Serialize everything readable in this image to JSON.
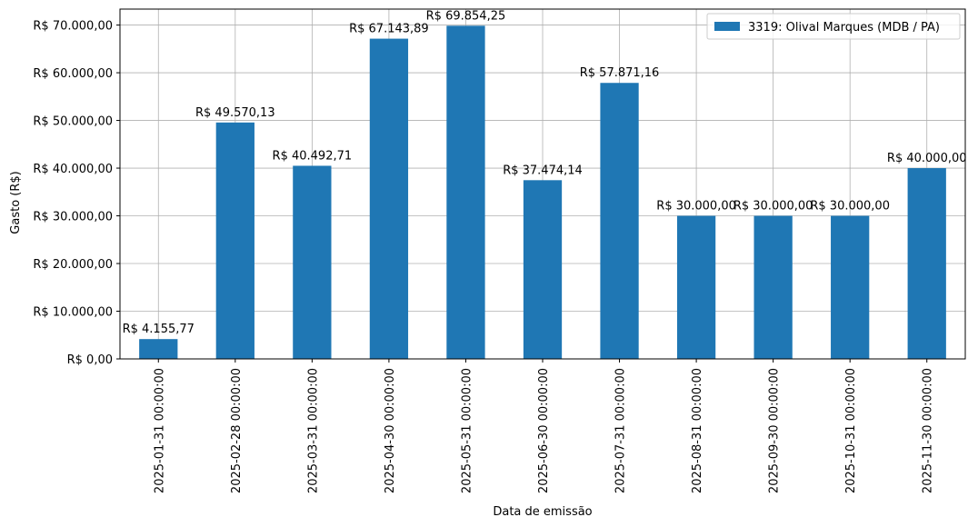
{
  "chart_data": {
    "type": "bar",
    "categories": [
      "2025-01-31 00:00:00",
      "2025-02-28 00:00:00",
      "2025-03-31 00:00:00",
      "2025-04-30 00:00:00",
      "2025-05-31 00:00:00",
      "2025-06-30 00:00:00",
      "2025-07-31 00:00:00",
      "2025-08-31 00:00:00",
      "2025-09-30 00:00:00",
      "2025-10-31 00:00:00",
      "2025-11-30 00:00:00"
    ],
    "series": [
      {
        "name": "3319: Olival Marques (MDB / PA)",
        "color": "#1f77b4",
        "values": [
          4155.77,
          49570.13,
          40492.71,
          67143.89,
          69854.25,
          37474.14,
          57871.16,
          30000.0,
          30000.0,
          30000.0,
          40000.0
        ]
      }
    ],
    "data_labels": [
      "R$ 4.155,77",
      "R$ 49.570,13",
      "R$ 40.492,71",
      "R$ 67.143,89",
      "R$ 69.854,25",
      "R$ 37.474,14",
      "R$ 57.871,16",
      "R$ 30.000,00",
      "R$ 30.000,00",
      "R$ 30.000,00",
      "R$ 40.000,00"
    ],
    "xlabel": "Data de emissão",
    "ylabel": "Gasto (R$)",
    "ylim": [
      0,
      73347.96
    ],
    "yticks": [
      0,
      10000,
      20000,
      30000,
      40000,
      50000,
      60000,
      70000
    ],
    "ytick_labels": [
      "R$ 0,00",
      "R$ 10.000,00",
      "R$ 20.000,00",
      "R$ 30.000,00",
      "R$ 40.000,00",
      "R$ 50.000,00",
      "R$ 60.000,00",
      "R$ 70.000,00"
    ],
    "grid": true,
    "legend_position": "top-right",
    "gridline_color": "#b0b0b0"
  }
}
